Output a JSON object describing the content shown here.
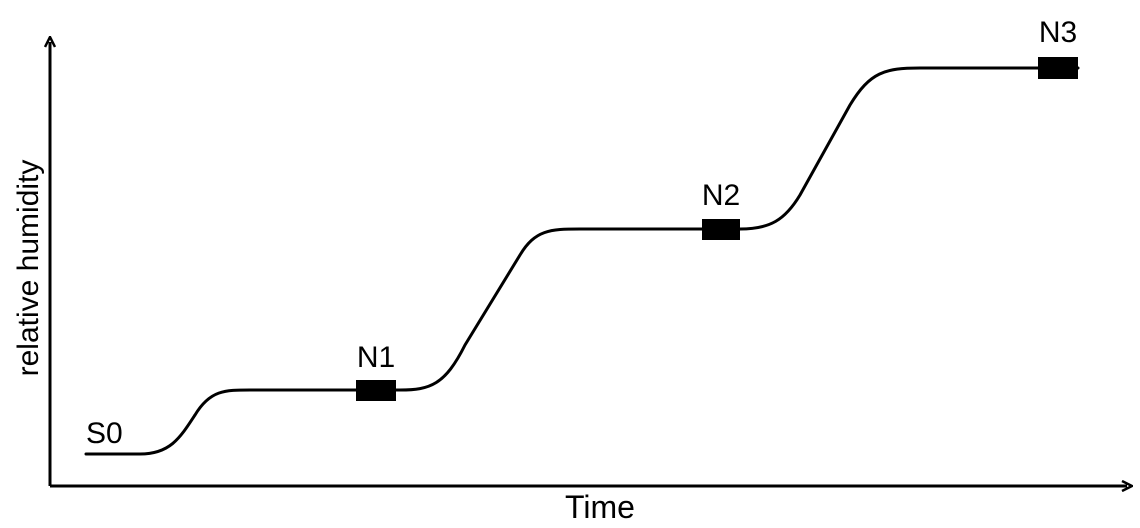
{
  "diagram": {
    "x_axis_label": "Time",
    "y_axis_label": "relative humidity",
    "start_label": "S0",
    "stages": [
      {
        "label": "N1"
      },
      {
        "label": "N2"
      },
      {
        "label": "N3"
      }
    ],
    "line_color": "#000000",
    "marker_color": "#000000"
  }
}
